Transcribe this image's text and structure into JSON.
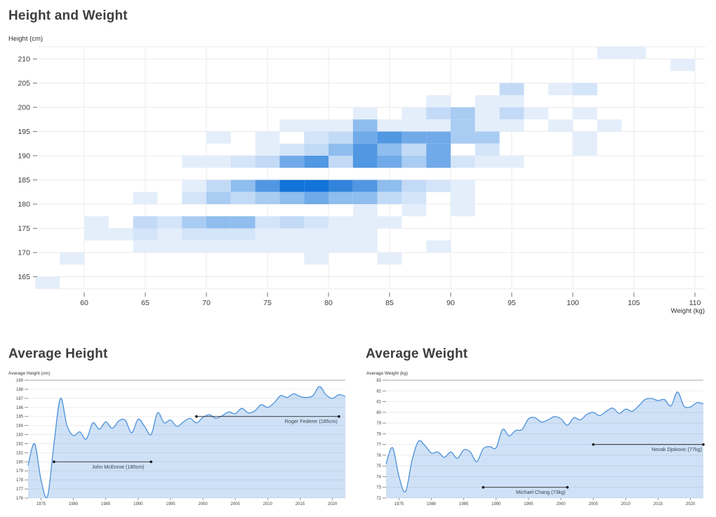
{
  "chart_data": [
    {
      "type": "heatmap",
      "title": "Height and Weight",
      "y_axis_label": "Height (cm)",
      "x_axis_label": "Weight (kg)",
      "x_ticks": [
        60,
        65,
        70,
        75,
        80,
        85,
        90,
        95,
        100,
        105,
        110
      ],
      "y_ticks": [
        165,
        170,
        175,
        180,
        185,
        190,
        195,
        200,
        205,
        210
      ],
      "x_bin_kg": 2,
      "y_bin_cm": 2.5,
      "x_range": [
        56,
        111
      ],
      "y_range": [
        162.5,
        212.5
      ],
      "color_scale": {
        "1": "#e4eefb",
        "1.5": "#d4e4f9",
        "2": "#c2daf6",
        "2.5": "#a9ccf2",
        "3": "#8ebdee",
        "3.5": "#70aae8",
        "4": "#5197e2",
        "4.5": "#3284dc",
        "5": "#1273d9"
      },
      "cells": [
        [
          102,
          210,
          1
        ],
        [
          104,
          210,
          1
        ],
        [
          108,
          207.5,
          1
        ],
        [
          94,
          202.5,
          2
        ],
        [
          98,
          202.5,
          1
        ],
        [
          100,
          202.5,
          1.5
        ],
        [
          88,
          200,
          1
        ],
        [
          92,
          200,
          1
        ],
        [
          94,
          200,
          1
        ],
        [
          82,
          197.5,
          1
        ],
        [
          86,
          197.5,
          1
        ],
        [
          88,
          197.5,
          2
        ],
        [
          90,
          197.5,
          2.5
        ],
        [
          92,
          197.5,
          1
        ],
        [
          94,
          197.5,
          2
        ],
        [
          96,
          197.5,
          1
        ],
        [
          100,
          197.5,
          1
        ],
        [
          76,
          195,
          1
        ],
        [
          78,
          195,
          1
        ],
        [
          80,
          195,
          1
        ],
        [
          82,
          195,
          3
        ],
        [
          84,
          195,
          1
        ],
        [
          86,
          195,
          1
        ],
        [
          88,
          195,
          1
        ],
        [
          90,
          195,
          2.5
        ],
        [
          92,
          195,
          1
        ],
        [
          94,
          195,
          1
        ],
        [
          98,
          195,
          1
        ],
        [
          102,
          195,
          1
        ],
        [
          70,
          192.5,
          1
        ],
        [
          74,
          192.5,
          1
        ],
        [
          78,
          192.5,
          1.5
        ],
        [
          80,
          192.5,
          2
        ],
        [
          82,
          192.5,
          3.5
        ],
        [
          84,
          192.5,
          4
        ],
        [
          86,
          192.5,
          3.5
        ],
        [
          88,
          192.5,
          3.5
        ],
        [
          90,
          192.5,
          2.5
        ],
        [
          92,
          192.5,
          2.5
        ],
        [
          100,
          192.5,
          1
        ],
        [
          74,
          190,
          1
        ],
        [
          76,
          190,
          1.5
        ],
        [
          78,
          190,
          2
        ],
        [
          80,
          190,
          3
        ],
        [
          82,
          190,
          4
        ],
        [
          84,
          190,
          3
        ],
        [
          86,
          190,
          2
        ],
        [
          88,
          190,
          3.5
        ],
        [
          92,
          190,
          1.5
        ],
        [
          100,
          190,
          1
        ],
        [
          68,
          187.5,
          1
        ],
        [
          70,
          187.5,
          1
        ],
        [
          72,
          187.5,
          1.5
        ],
        [
          74,
          187.5,
          2
        ],
        [
          76,
          187.5,
          3.5
        ],
        [
          78,
          187.5,
          4
        ],
        [
          80,
          187.5,
          2
        ],
        [
          82,
          187.5,
          4
        ],
        [
          84,
          187.5,
          3.5
        ],
        [
          86,
          187.5,
          2.5
        ],
        [
          88,
          187.5,
          3.5
        ],
        [
          90,
          187.5,
          1.5
        ],
        [
          92,
          187.5,
          1
        ],
        [
          94,
          187.5,
          1
        ],
        [
          68,
          182.5,
          1
        ],
        [
          70,
          182.5,
          2
        ],
        [
          72,
          182.5,
          3
        ],
        [
          74,
          182.5,
          4
        ],
        [
          76,
          182.5,
          5
        ],
        [
          78,
          182.5,
          5
        ],
        [
          80,
          182.5,
          4.5
        ],
        [
          82,
          182.5,
          4
        ],
        [
          84,
          182.5,
          3
        ],
        [
          86,
          182.5,
          2
        ],
        [
          88,
          182.5,
          1.5
        ],
        [
          90,
          182.5,
          1
        ],
        [
          64,
          180,
          1
        ],
        [
          68,
          180,
          1.5
        ],
        [
          70,
          180,
          2.5
        ],
        [
          72,
          180,
          2
        ],
        [
          74,
          180,
          2.5
        ],
        [
          76,
          180,
          3
        ],
        [
          78,
          180,
          3.5
        ],
        [
          80,
          180,
          3
        ],
        [
          82,
          180,
          3
        ],
        [
          84,
          180,
          2
        ],
        [
          86,
          180,
          1.5
        ],
        [
          90,
          180,
          1
        ],
        [
          82,
          177.5,
          1
        ],
        [
          86,
          177.5,
          1
        ],
        [
          90,
          177.5,
          1
        ],
        [
          60,
          175,
          1
        ],
        [
          64,
          175,
          2
        ],
        [
          66,
          175,
          1.5
        ],
        [
          68,
          175,
          2.5
        ],
        [
          70,
          175,
          3
        ],
        [
          72,
          175,
          3
        ],
        [
          74,
          175,
          1.5
        ],
        [
          76,
          175,
          2
        ],
        [
          78,
          175,
          1.5
        ],
        [
          80,
          175,
          1
        ],
        [
          82,
          175,
          1
        ],
        [
          84,
          175,
          1
        ],
        [
          60,
          172.5,
          1
        ],
        [
          62,
          172.5,
          1
        ],
        [
          64,
          172.5,
          1.5
        ],
        [
          66,
          172.5,
          1
        ],
        [
          68,
          172.5,
          1.5
        ],
        [
          70,
          172.5,
          1.5
        ],
        [
          72,
          172.5,
          1.5
        ],
        [
          74,
          172.5,
          1
        ],
        [
          76,
          172.5,
          1
        ],
        [
          78,
          172.5,
          1
        ],
        [
          80,
          172.5,
          1
        ],
        [
          82,
          172.5,
          1
        ],
        [
          64,
          170,
          1
        ],
        [
          66,
          170,
          1
        ],
        [
          68,
          170,
          1
        ],
        [
          70,
          170,
          1
        ],
        [
          72,
          170,
          1
        ],
        [
          74,
          170,
          1
        ],
        [
          76,
          170,
          1
        ],
        [
          78,
          170,
          1
        ],
        [
          80,
          170,
          1
        ],
        [
          82,
          170,
          1
        ],
        [
          88,
          170,
          1
        ],
        [
          58,
          167.5,
          1
        ],
        [
          78,
          167.5,
          1
        ],
        [
          84,
          167.5,
          1
        ],
        [
          56,
          162.5,
          1
        ]
      ]
    },
    {
      "type": "area",
      "title": "Average Height",
      "axis_label": "Average Height (cm)",
      "y_ticks": [
        189,
        188,
        187,
        186,
        185,
        184,
        183,
        182,
        181,
        180,
        179,
        178,
        177,
        176
      ],
      "x_ticks": [
        1975,
        1980,
        1985,
        1990,
        1995,
        2000,
        2005,
        2010,
        2015,
        2020
      ],
      "x_start": 1973,
      "values": [
        179.6,
        182.0,
        178.0,
        176.2,
        182.0,
        187.0,
        184.0,
        182.9,
        183.3,
        182.5,
        184.3,
        183.6,
        184.4,
        183.7,
        184.5,
        184.6,
        183.2,
        184.7,
        183.9,
        183.0,
        185.4,
        184.3,
        184.6,
        183.9,
        184.4,
        184.8,
        184.3,
        184.9,
        185.2,
        184.8,
        185.1,
        185.5,
        185.3,
        185.9,
        185.4,
        185.6,
        186.3,
        186.0,
        186.5,
        187.3,
        187.1,
        187.5,
        187.2,
        187.1,
        187.3,
        188.3,
        187.4,
        187.0,
        187.4,
        187.2
      ],
      "annotations": [
        {
          "label": "John McEnroe (180cm)",
          "value": 180,
          "from": 1977,
          "to": 1992,
          "anchor": "middle"
        },
        {
          "label": "Roger Federer (185cm)",
          "value": 185,
          "from": 1999,
          "to": 2021,
          "anchor": "end"
        }
      ]
    },
    {
      "type": "area",
      "title": "Average Weight",
      "axis_label": "Average Weight (kg)",
      "y_ticks": [
        83,
        82,
        81,
        80,
        79,
        78,
        77,
        76,
        75,
        74,
        73,
        72
      ],
      "x_ticks": [
        1975,
        1980,
        1985,
        1990,
        1995,
        2000,
        2005,
        2010,
        2015,
        2020
      ],
      "x_start": 1973,
      "values": [
        75.2,
        76.7,
        74.0,
        72.6,
        75.5,
        77.3,
        76.9,
        76.2,
        76.3,
        75.8,
        76.3,
        75.7,
        76.5,
        76.3,
        75.4,
        76.6,
        76.8,
        76.7,
        78.4,
        77.8,
        78.3,
        78.4,
        79.4,
        79.5,
        79.1,
        79.3,
        79.6,
        79.4,
        78.8,
        79.5,
        79.3,
        79.8,
        80.0,
        79.7,
        80.1,
        80.4,
        79.9,
        80.3,
        80.1,
        80.6,
        81.2,
        81.3,
        81.1,
        81.2,
        80.6,
        81.9,
        80.6,
        80.5,
        80.9,
        80.8
      ],
      "annotations": [
        {
          "label": "Michael Chang (73kg)",
          "value": 73,
          "from": 1988,
          "to": 2001,
          "anchor": "middle"
        },
        {
          "label": "Novak Djokovic (77kg)",
          "value": 77,
          "from": 2005,
          "to": 2022,
          "anchor": "end"
        }
      ]
    }
  ],
  "style": {
    "line_color": "#4b91da",
    "area_fill": "#cfe1f6",
    "grid_color": "#ebebeb",
    "tick_color": "#3c3c3c",
    "annotation_color": "#2f2f2f",
    "annotation_label_color": "#3a4452"
  }
}
